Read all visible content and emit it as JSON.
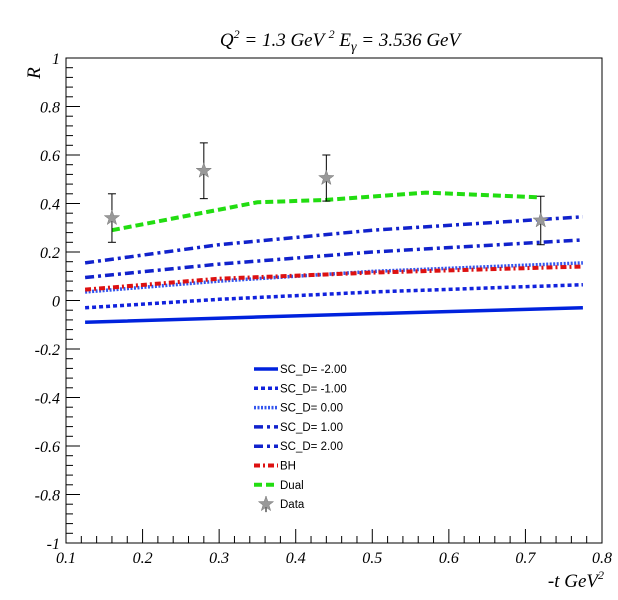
{
  "chart_data": {
    "type": "line",
    "title": {
      "q": "Q",
      "q_sup": "2",
      "eq1": " = 1.3 GeV ",
      "gev_sup": "2",
      "e": " E",
      "e_sub": "γ",
      "eq2": " = 3.536 GeV"
    },
    "ylabel": "R",
    "xlabel": {
      "main": "-t GeV",
      "sup": "2"
    },
    "xlim": [
      0.1,
      0.8
    ],
    "ylim": [
      -1,
      1
    ],
    "x_ticks": [
      0.1,
      0.2,
      0.3,
      0.4,
      0.5,
      0.6,
      0.7,
      0.8
    ],
    "x_tick_labels": [
      "0.1",
      "0.2",
      "0.3",
      "0.4",
      "0.5",
      "0.6",
      "0.7",
      "0.8"
    ],
    "y_ticks": [
      -1,
      -0.8,
      -0.6,
      -0.4,
      -0.2,
      0,
      0.2,
      0.4,
      0.6,
      0.8,
      1
    ],
    "y_tick_labels": [
      "-1",
      "-0.8",
      "-0.6",
      "-0.4",
      "-0.2",
      "0",
      "0.2",
      "0.4",
      "0.6",
      "0.8",
      "1"
    ],
    "grid": false,
    "legend_position": "lower-center",
    "series": [
      {
        "name": "SC_D= -2.00",
        "color": "#0022dd",
        "style": "solid",
        "x": [
          0.125,
          0.35,
          0.55,
          0.775
        ],
        "y": [
          -0.09,
          -0.068,
          -0.05,
          -0.03
        ]
      },
      {
        "name": "SC_D= -1.00",
        "color": "#1122dd",
        "style": "dotted",
        "x": [
          0.125,
          0.3,
          0.5,
          0.775
        ],
        "y": [
          -0.03,
          0.005,
          0.035,
          0.065
        ]
      },
      {
        "name": "SC_D= 0.00",
        "color": "#3355ee",
        "style": "fine-dotted",
        "x": [
          0.125,
          0.3,
          0.5,
          0.775
        ],
        "y": [
          0.035,
          0.08,
          0.12,
          0.155
        ]
      },
      {
        "name": "SC_D= 1.00",
        "color": "#1122cc",
        "style": "dash-dot",
        "x": [
          0.125,
          0.3,
          0.5,
          0.775
        ],
        "y": [
          0.095,
          0.15,
          0.2,
          0.25
        ]
      },
      {
        "name": "SC_D= 2.00",
        "color": "#1122cc",
        "style": "dash-dot",
        "x": [
          0.125,
          0.3,
          0.5,
          0.775
        ],
        "y": [
          0.155,
          0.23,
          0.29,
          0.345
        ]
      },
      {
        "name": "BH",
        "color": "#dd1111",
        "style": "dash-dot-red",
        "x": [
          0.125,
          0.3,
          0.5,
          0.775
        ],
        "y": [
          0.045,
          0.09,
          0.115,
          0.14
        ]
      },
      {
        "name": "Dual",
        "color": "#22dd11",
        "style": "dashed",
        "x": [
          0.16,
          0.35,
          0.44,
          0.57,
          0.72
        ],
        "y": [
          0.29,
          0.405,
          0.415,
          0.445,
          0.425
        ]
      }
    ],
    "data_points": {
      "name": "Data",
      "color": "#999999",
      "x": [
        0.16,
        0.28,
        0.44,
        0.72
      ],
      "y": [
        0.34,
        0.535,
        0.505,
        0.33
      ],
      "err": [
        0.1,
        0.115,
        0.095,
        0.1
      ]
    }
  }
}
